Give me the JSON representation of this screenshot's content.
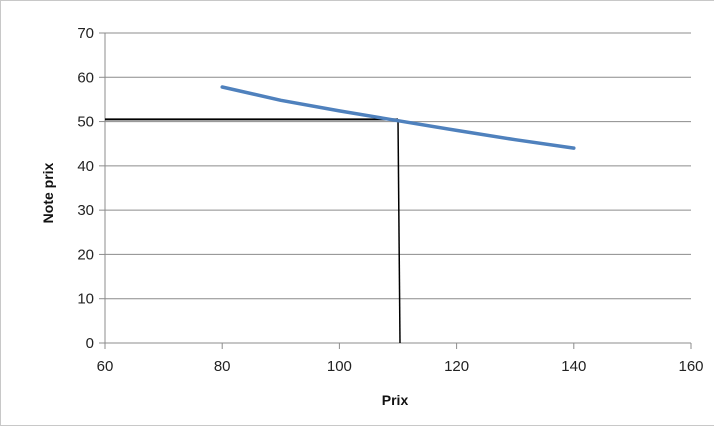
{
  "chart_data": {
    "type": "line",
    "xlabel": "Prix",
    "ylabel": "Note prix",
    "xlim": [
      60,
      160
    ],
    "ylim": [
      0,
      70
    ],
    "x_ticks": [
      60,
      80,
      100,
      120,
      140,
      160
    ],
    "y_ticks": [
      0,
      10,
      20,
      30,
      40,
      50,
      60,
      70
    ],
    "grid": "horizontal",
    "legend": "none",
    "series": [
      {
        "color": "#4f81bd",
        "x": [
          80,
          90,
          100,
          110,
          120,
          130,
          140
        ],
        "y": [
          57.8,
          54.8,
          52.4,
          50.2,
          48.0,
          45.9,
          44.0
        ]
      }
    ],
    "annotations": [
      {
        "type": "reference-lines",
        "x": 110,
        "y": 50.5,
        "color": "#000000"
      }
    ]
  }
}
